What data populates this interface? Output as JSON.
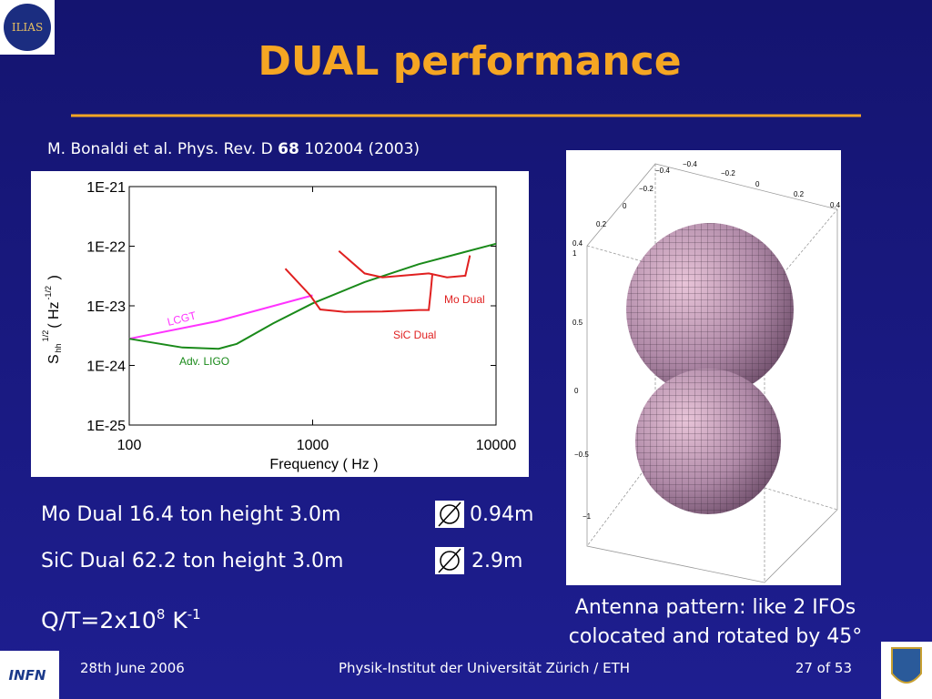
{
  "slide": {
    "logo_top": "ILIAS",
    "title": "DUAL performance",
    "citation": {
      "pre": "M. Bonaldi et al. Phys. Rev. D ",
      "bold": "68",
      "post": " 102004 (2003)"
    },
    "lines": [
      {
        "text": "Mo Dual  16.4 ton  height  3.0m",
        "diameter": "0.94m"
      },
      {
        "text": "SiC Dual 62.2 ton  height  3.0m",
        "diameter": "2.9m"
      }
    ],
    "qt": {
      "base": "Q/T=2x10",
      "exp": "8",
      "unit": " K",
      "unit_exp": "-1"
    },
    "caption": [
      "Antenna pattern: like 2 IFOs",
      "colocated and rotated by 45°"
    ],
    "antenna": {
      "ticks_right": [
        "−0.4",
        "−0.2",
        "0",
        "0.2",
        "0.4"
      ],
      "ticks_left": [
        "−0.4",
        "−0.2",
        "0",
        "0.2",
        "0.4"
      ],
      "ticks_vertical": [
        "1",
        "0.5",
        "0",
        "−0.5",
        "−1"
      ]
    },
    "footer": {
      "date": "28th June 2006",
      "institute": "Physik-Institut der Universität Zürich / ETH",
      "page": "27 of 53"
    },
    "logo_bottom": "INFN"
  },
  "chart_data": {
    "type": "line",
    "xlabel": "Frequency ( Hz )",
    "ylabel": {
      "main": "S",
      "sub": "hh",
      "sup": "1/2",
      "unit": "( Hz",
      "unit_sup": "-1/2",
      "close": " )"
    },
    "xscale": "log",
    "yscale": "log",
    "xlim": [
      100,
      10000
    ],
    "xticks": [
      100,
      1000,
      10000
    ],
    "ylim": [
      1e-25,
      1e-21
    ],
    "yticks": [
      {
        "value": 1e-21,
        "label": "1E-21"
      },
      {
        "value": 1e-22,
        "label": "1E-22"
      },
      {
        "value": 1e-23,
        "label": "1E-23"
      },
      {
        "value": 1e-24,
        "label": "1E-24"
      },
      {
        "value": 1e-25,
        "label": "1E-25"
      }
    ],
    "series": [
      {
        "name": "LCGT",
        "color": "#ff33ff",
        "x": [
          100,
          300,
          1000
        ],
        "values": [
          2.8e-24,
          5.5e-24,
          1.5e-23
        ]
      },
      {
        "name": "Adv. LIGO",
        "color": "#1a8a1a",
        "x": [
          100,
          195,
          307,
          386,
          610,
          1000,
          1920,
          3800,
          10000
        ],
        "values": [
          2.8e-24,
          2e-24,
          1.9e-24,
          2.3e-24,
          5.1e-24,
          1.1e-23,
          2.5e-23,
          5e-23,
          1.1e-22
        ]
      },
      {
        "name": "Mo Dual",
        "color": "#e02020",
        "x": [
          1390,
          1920,
          2400,
          4300,
          5400,
          6800,
          7200
        ],
        "values": [
          8.3e-23,
          3.5e-23,
          3e-23,
          3.5e-23,
          3e-23,
          3.2e-23,
          7e-23
        ]
      },
      {
        "name": "SiC Dual",
        "color": "#e02020",
        "x": [
          710,
          970,
          1100,
          1500,
          2400,
          3800,
          4300,
          4400,
          4500
        ],
        "values": [
          4.2e-23,
          1.5e-23,
          8.7e-24,
          7.9e-24,
          8e-24,
          8.5e-24,
          8.5e-24,
          1.7e-23,
          3.5e-23
        ]
      }
    ]
  }
}
